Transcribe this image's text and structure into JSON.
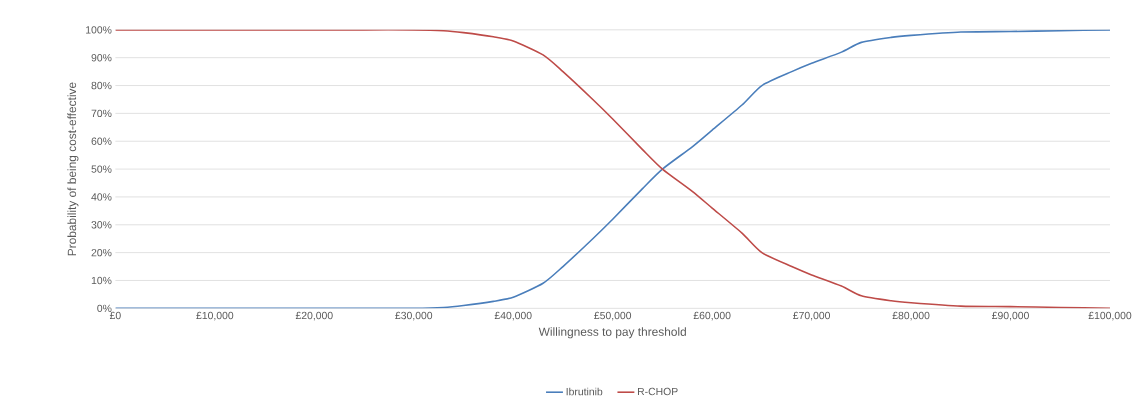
{
  "chart_data": {
    "type": "line",
    "xlabel": "Willingness to pay threshold",
    "ylabel": "Probability of being cost-effective",
    "x": [
      0,
      10000,
      20000,
      25000,
      30000,
      33000,
      35000,
      38000,
      40000,
      43000,
      45000,
      48000,
      50000,
      53000,
      55000,
      58000,
      60000,
      63000,
      65000,
      68000,
      70000,
      73000,
      75000,
      78000,
      80000,
      85000,
      90000,
      95000,
      100000
    ],
    "series": [
      {
        "name": "Ibrutinib",
        "color": "#4a7ebb",
        "values": [
          0,
          0,
          0,
          0,
          0,
          0.3,
          1,
          2.5,
          4,
          9,
          15,
          25,
          32,
          43,
          50,
          58,
          64,
          73,
          80,
          85,
          88,
          92,
          95.5,
          97.3,
          98,
          99.2,
          99.4,
          99.7,
          100
        ]
      },
      {
        "name": "R-CHOP",
        "color": "#be4b48",
        "values": [
          100,
          100,
          100,
          100,
          100,
          99.7,
          99,
          97.5,
          96,
          91,
          85,
          75,
          68,
          57,
          50,
          42,
          36,
          27,
          20,
          15,
          12,
          8,
          4.5,
          2.7,
          2,
          0.8,
          0.6,
          0.3,
          0
        ]
      }
    ],
    "xlim": [
      0,
      100000
    ],
    "ylim": [
      0,
      100
    ],
    "xticks": [
      {
        "value": 0,
        "label": "£0"
      },
      {
        "value": 10000,
        "label": "£10,000"
      },
      {
        "value": 20000,
        "label": "£20,000"
      },
      {
        "value": 30000,
        "label": "£30,000"
      },
      {
        "value": 40000,
        "label": "£40,000"
      },
      {
        "value": 50000,
        "label": "£50,000"
      },
      {
        "value": 60000,
        "label": "£60,000"
      },
      {
        "value": 70000,
        "label": "£70,000"
      },
      {
        "value": 80000,
        "label": "£80,000"
      },
      {
        "value": 90000,
        "label": "£90,000"
      },
      {
        "value": 100000,
        "label": "£100,000"
      }
    ],
    "yticks": [
      {
        "value": 0,
        "label": "0%"
      },
      {
        "value": 10,
        "label": "10%"
      },
      {
        "value": 20,
        "label": "20%"
      },
      {
        "value": 30,
        "label": "30%"
      },
      {
        "value": 40,
        "label": "40%"
      },
      {
        "value": 50,
        "label": "50%"
      },
      {
        "value": 60,
        "label": "60%"
      },
      {
        "value": 70,
        "label": "70%"
      },
      {
        "value": 80,
        "label": "80%"
      },
      {
        "value": 90,
        "label": "90%"
      },
      {
        "value": 100,
        "label": "100%"
      }
    ],
    "grid": "y",
    "legend": "bottom",
    "marker": "none",
    "line_style": "solid"
  }
}
